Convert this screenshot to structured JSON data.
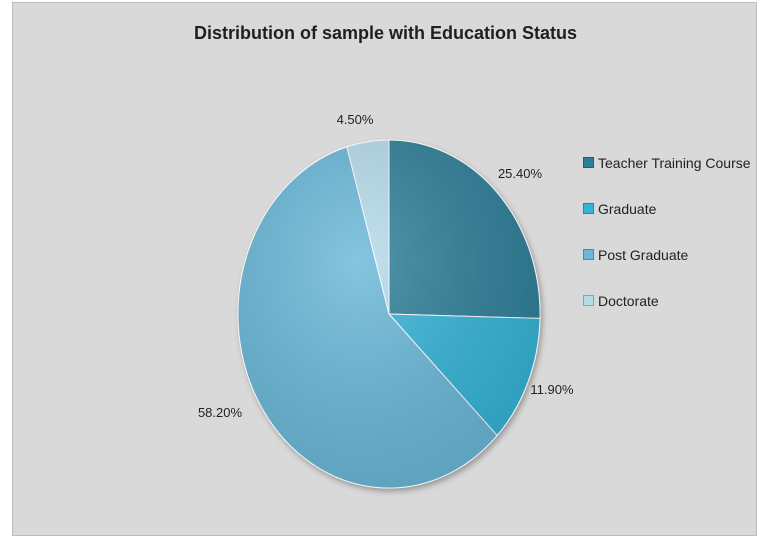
{
  "chart_data": {
    "type": "pie",
    "title": "Distribution of sample with Education Status",
    "categories": [
      "Teacher Training Course",
      "Graduate",
      "Post Graduate",
      "Doctorate"
    ],
    "values": [
      25.4,
      11.9,
      58.2,
      4.5
    ],
    "data_labels": [
      "25.40%",
      "11.90%",
      "58.20%",
      "4.50%"
    ],
    "colors": [
      "#2e7f99",
      "#36b4d8",
      "#6bb8d9",
      "#b5dbea"
    ],
    "legend_position": "right",
    "start_angle": "12 o'clock, clockwise"
  }
}
